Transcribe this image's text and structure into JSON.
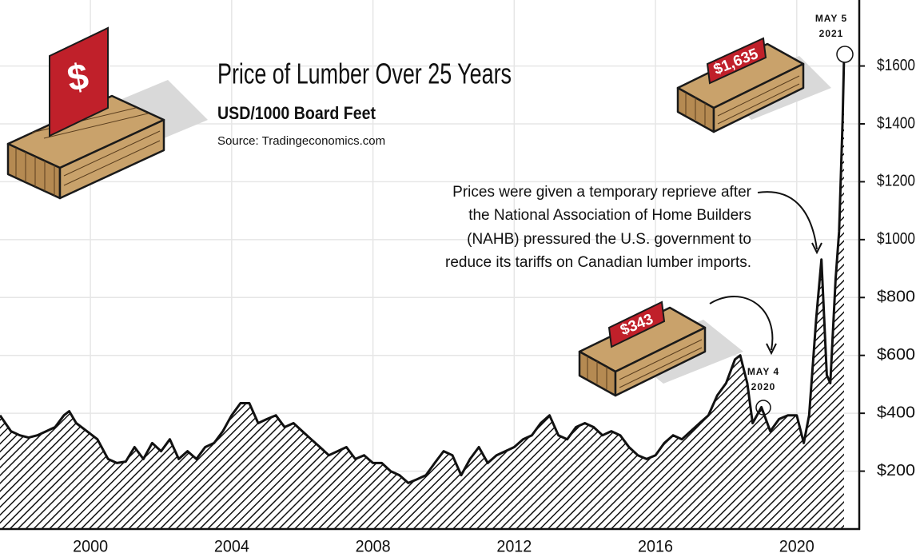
{
  "chart_data": {
    "type": "area",
    "title": "Price of Lumber Over 25 Years",
    "subtitle": "USD/1000 Board Feet",
    "source": "Source: Tradingeconomics.com",
    "x": [
      1997.44,
      1997.75,
      1998.0,
      1998.25,
      1998.5,
      1998.75,
      1999.0,
      1999.25,
      1999.4,
      1999.6,
      1999.9,
      2000.2,
      2000.5,
      2000.75,
      2001.0,
      2001.25,
      2001.5,
      2001.75,
      2002.0,
      2002.25,
      2002.5,
      2002.75,
      2003.0,
      2003.25,
      2003.5,
      2003.75,
      2004.0,
      2004.25,
      2004.5,
      2004.75,
      2005.0,
      2005.25,
      2005.5,
      2005.75,
      2006.0,
      2006.25,
      2006.5,
      2006.75,
      2007.0,
      2007.25,
      2007.5,
      2007.75,
      2008.0,
      2008.25,
      2008.5,
      2008.75,
      2009.0,
      2009.25,
      2009.5,
      2009.75,
      2010.0,
      2010.25,
      2010.5,
      2010.75,
      2011.0,
      2011.25,
      2011.5,
      2011.75,
      2012.0,
      2012.25,
      2012.5,
      2012.75,
      2013.0,
      2013.25,
      2013.5,
      2013.75,
      2014.0,
      2014.25,
      2014.5,
      2014.75,
      2015.0,
      2015.25,
      2015.5,
      2015.75,
      2016.0,
      2016.25,
      2016.5,
      2016.75,
      2017.0,
      2017.25,
      2017.5,
      2017.75,
      2018.0,
      2018.25,
      2018.4,
      2018.6,
      2018.75,
      2019.0,
      2019.25,
      2019.5,
      2019.75,
      2020.0,
      2020.2,
      2020.35,
      2020.55,
      2020.7,
      2020.85,
      2020.95,
      2021.1,
      2021.2,
      2021.3,
      2021.34
    ],
    "values": [
      393,
      338,
      324,
      316,
      324,
      338,
      352,
      393,
      407,
      366,
      338,
      310,
      242,
      228,
      233,
      283,
      242,
      297,
      269,
      310,
      242,
      269,
      242,
      283,
      297,
      338,
      393,
      435,
      435,
      366,
      380,
      393,
      352,
      366,
      338,
      310,
      283,
      255,
      269,
      283,
      242,
      255,
      228,
      228,
      200,
      186,
      159,
      172,
      186,
      228,
      269,
      255,
      186,
      242,
      283,
      228,
      255,
      269,
      283,
      310,
      324,
      366,
      393,
      324,
      310,
      352,
      366,
      352,
      324,
      338,
      324,
      283,
      255,
      242,
      255,
      297,
      324,
      310,
      338,
      366,
      393,
      462,
      504,
      586,
      600,
      504,
      366,
      421,
      338,
      380,
      393,
      393,
      297,
      393,
      725,
      931,
      532,
      504,
      863,
      1028,
      1414,
      1635
    ],
    "color": "#111111",
    "xlim": [
      1997.44,
      2021.77
    ],
    "ylim": [
      0,
      1828
    ],
    "xticks": [
      2000,
      2004,
      2008,
      2012,
      2016,
      2020
    ],
    "yticks": [
      {
        "value": 200,
        "label": "$200"
      },
      {
        "value": 400,
        "label": "$400"
      },
      {
        "value": 600,
        "label": "$600"
      },
      {
        "value": 800,
        "label": "$800"
      },
      {
        "value": 1000,
        "label": "$1000"
      },
      {
        "value": 1200,
        "label": "$1200"
      },
      {
        "value": 1400,
        "label": "$1400"
      },
      {
        "value": 1600,
        "label": "$1600"
      }
    ],
    "grid": true,
    "annotations": {
      "note_lines": [
        "Prices were given a temporary reprieve after",
        "the National Association of Home Builders",
        "(NAHB) pressured the U.S. government to",
        "reduce its tariffs on Canadian lumber imports."
      ],
      "peak_date": [
        "MAY 5",
        "2021"
      ],
      "peak_label": "$1,635",
      "low_date": [
        "MAY 4",
        "2020"
      ],
      "low_label": "$343"
    }
  }
}
